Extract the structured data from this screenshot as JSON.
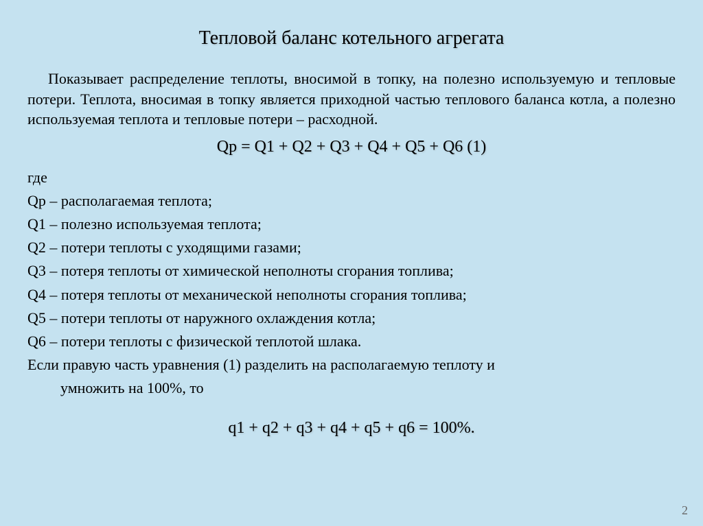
{
  "colors": {
    "background": "#c5e2f0",
    "text": "#000000",
    "pageNumber": "#666666"
  },
  "fonts": {
    "family": "Times New Roman",
    "titleSize": 28,
    "bodySize": 22,
    "equationSize": 24
  },
  "title": "Тепловой баланс котельного агрегата",
  "intro": "Показывает распределение теплоты, вносимой в топку, на полезно используемую и тепловые потери. Теплота, вносимая в топку является приходной частью теплового баланса котла, а полезно используемая теплота и тепловые потери – расходной.",
  "equation1": "Qр = Q1  +  Q2  +  Q3  +  Q4  +  Q5  +  Q6   (1)",
  "where": "где",
  "defs": {
    "qp": "Qр  – располагаемая теплота;",
    "q1": "Q1 – полезно используемая теплота;",
    "q2": "Q2 – потери теплоты с уходящими газами;",
    "q3": "Q3 – потеря теплоты от химической неполноты сгорания топлива;",
    "q4": "Q4 – потеря теплоты от механической неполноты сгорания топлива;",
    "q5": "Q5 – потери теплоты от наружного охлаждения котла;",
    "q6": "Q6 – потери теплоты с физической теплотой шлака."
  },
  "trailing1": "Если правую часть уравнения (1) разделить на располагаемую теплоту и",
  "trailing2": "умножить на 100%,  то",
  "equation2": "q1  +  q2  +  q3  +  q4  +  q5  +  q6  =  100%.",
  "pageNumber": "2"
}
